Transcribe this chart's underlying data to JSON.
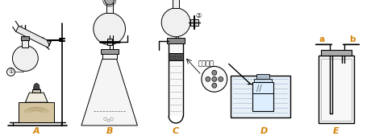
{
  "bg_color": "#ffffff",
  "line_color": "#000000",
  "label_color_orange": "#d4820a",
  "label_A": "A",
  "label_B": "B",
  "label_C": "C",
  "label_D": "D",
  "label_E": "E",
  "label_a": "a",
  "label_b": "b",
  "label_1": "①",
  "label_2": "②",
  "label_duokong": "多孔隔板",
  "figsize": [
    4.65,
    1.69
  ],
  "dpi": 100
}
